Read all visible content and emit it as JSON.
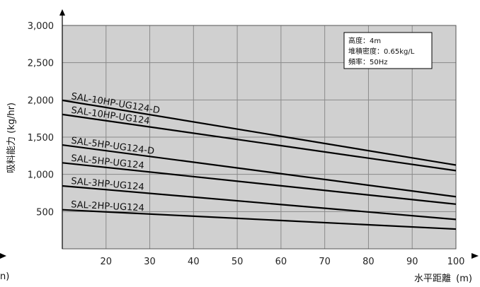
{
  "chart_data": {
    "type": "line",
    "xlabel": "水平距離",
    "xunit": "(m)",
    "ylabel": "吸料能力 (kg/hr)",
    "xlim": [
      10,
      100
    ],
    "ylim": [
      0,
      3000
    ],
    "x_ticks": [
      20,
      30,
      40,
      50,
      60,
      70,
      80,
      90,
      100
    ],
    "y_ticks": [
      500,
      1000,
      1500,
      2000,
      2500,
      3000
    ],
    "y_tick_labels": [
      "500",
      "1,000",
      "1,500",
      "2,000",
      "2,500",
      "3,000"
    ],
    "grid": true,
    "left_edge_fragments": [
      "n)"
    ],
    "series": [
      {
        "name": "SAL-10HP-UG124-D",
        "x": [
          10,
          100
        ],
        "y": [
          1995,
          1125
        ]
      },
      {
        "name": "SAL-10HP-UG124",
        "x": [
          10,
          100
        ],
        "y": [
          1805,
          1050
        ]
      },
      {
        "name": "SAL-5HP-UG124-D",
        "x": [
          10,
          100
        ],
        "y": [
          1395,
          700
        ]
      },
      {
        "name": "SAL-5HP-UG124",
        "x": [
          10,
          100
        ],
        "y": [
          1155,
          600
        ]
      },
      {
        "name": "SAL-3HP-UG124",
        "x": [
          10,
          100
        ],
        "y": [
          845,
          395
        ]
      },
      {
        "name": "SAL-2HP-UG124",
        "x": [
          10,
          100
        ],
        "y": [
          525,
          265
        ]
      }
    ],
    "annotation": {
      "lines": [
        "高度：4m",
        "堆積密度：0.65kg/L",
        "頻率：50Hz"
      ]
    }
  }
}
